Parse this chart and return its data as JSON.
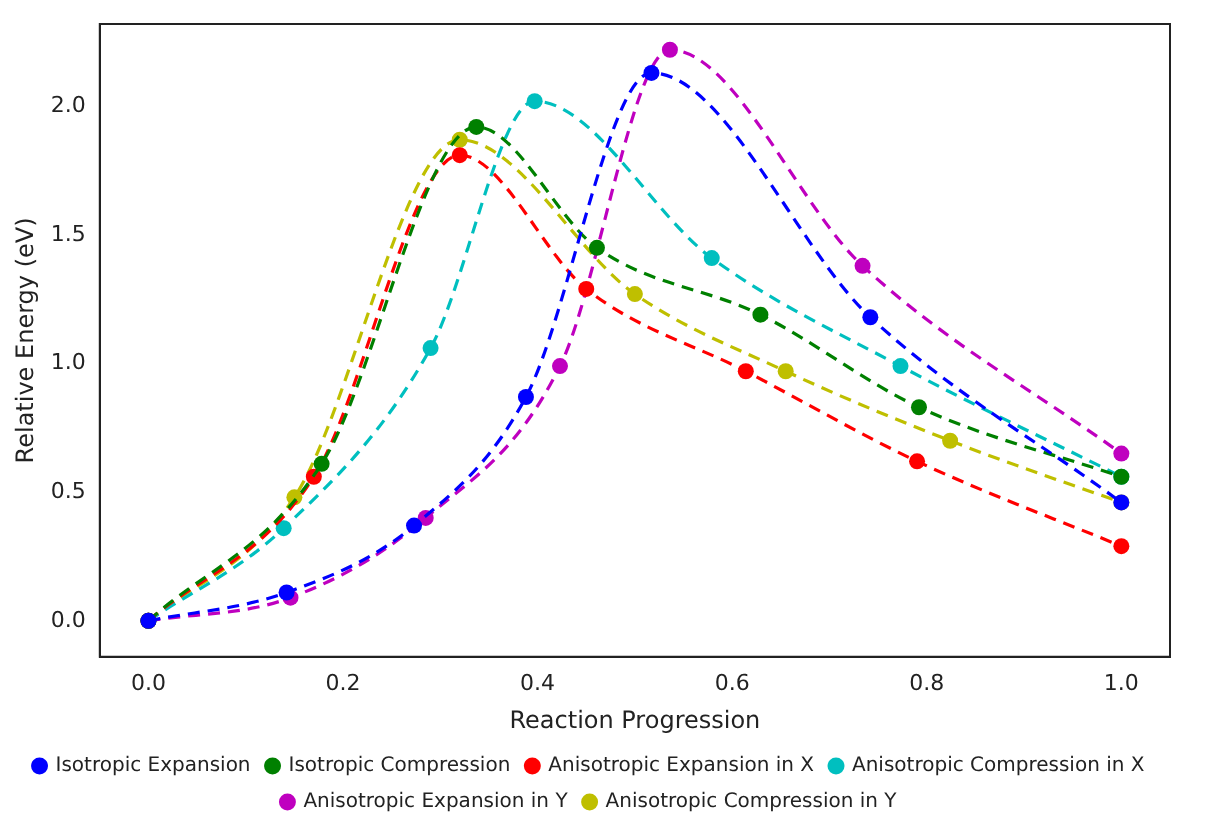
{
  "chart_data": {
    "type": "line",
    "xlabel": "Reaction Progression",
    "ylabel": "Relative Energy (eV)",
    "xlim": [
      -0.05,
      1.05
    ],
    "xticks": [
      {
        "value": 0,
        "label": "0.0"
      },
      {
        "value": 0.2,
        "label": "0.2"
      },
      {
        "value": 0.4,
        "label": "0.4"
      },
      {
        "value": 0.6,
        "label": "0.6"
      },
      {
        "value": 0.8,
        "label": "0.8"
      },
      {
        "value": 1,
        "label": "1.0"
      }
    ],
    "ylim": [
      -0.14,
      2.32
    ],
    "yticks": [
      {
        "value": 0,
        "label": "0.0"
      },
      {
        "value": 0.5,
        "label": "0.5"
      },
      {
        "value": 1,
        "label": "1.0"
      },
      {
        "value": 1.5,
        "label": "1.5"
      },
      {
        "value": 2,
        "label": "2.0"
      }
    ],
    "grid": false,
    "legend": "bottom",
    "marker": "circle",
    "line_style": "dashed",
    "series": [
      {
        "name": "Isotropic Expansion",
        "color": "#0000ff",
        "x": [
          0,
          0.142,
          0.273,
          0.388,
          0.517,
          0.742,
          1.0
        ],
        "values": [
          0,
          0.11,
          0.37,
          0.87,
          2.13,
          1.18,
          0.46
        ]
      },
      {
        "name": "Isotropic Compression",
        "color": "#008000",
        "x": [
          0,
          0.178,
          0.337,
          0.461,
          0.629,
          0.792,
          1.0
        ],
        "values": [
          0,
          0.61,
          1.92,
          1.45,
          1.19,
          0.83,
          0.56
        ]
      },
      {
        "name": "Anisotropic Expansion in X",
        "color": "#ff0000",
        "x": [
          0,
          0.17,
          0.32,
          0.45,
          0.614,
          0.79,
          1.0
        ],
        "values": [
          0,
          0.56,
          1.81,
          1.29,
          0.97,
          0.62,
          0.29
        ]
      },
      {
        "name": "Anisotropic Compression in X",
        "color": "#00bfbf",
        "x": [
          0,
          0.139,
          0.29,
          0.397,
          0.579,
          0.773,
          1.0
        ],
        "values": [
          0,
          0.36,
          1.06,
          2.02,
          1.41,
          0.99,
          0.56
        ]
      },
      {
        "name": "Anisotropic Expansion in Y",
        "color": "#bf00bf",
        "x": [
          0,
          0.146,
          0.285,
          0.423,
          0.536,
          0.734,
          1.0
        ],
        "values": [
          0,
          0.09,
          0.4,
          0.99,
          2.22,
          1.38,
          0.65
        ]
      },
      {
        "name": "Anisotropic Compression in Y",
        "color": "#bfbf00",
        "x": [
          0,
          0.15,
          0.32,
          0.5,
          0.655,
          0.824,
          1.0
        ],
        "values": [
          0,
          0.48,
          1.87,
          1.27,
          0.97,
          0.7,
          0.46
        ]
      }
    ]
  }
}
